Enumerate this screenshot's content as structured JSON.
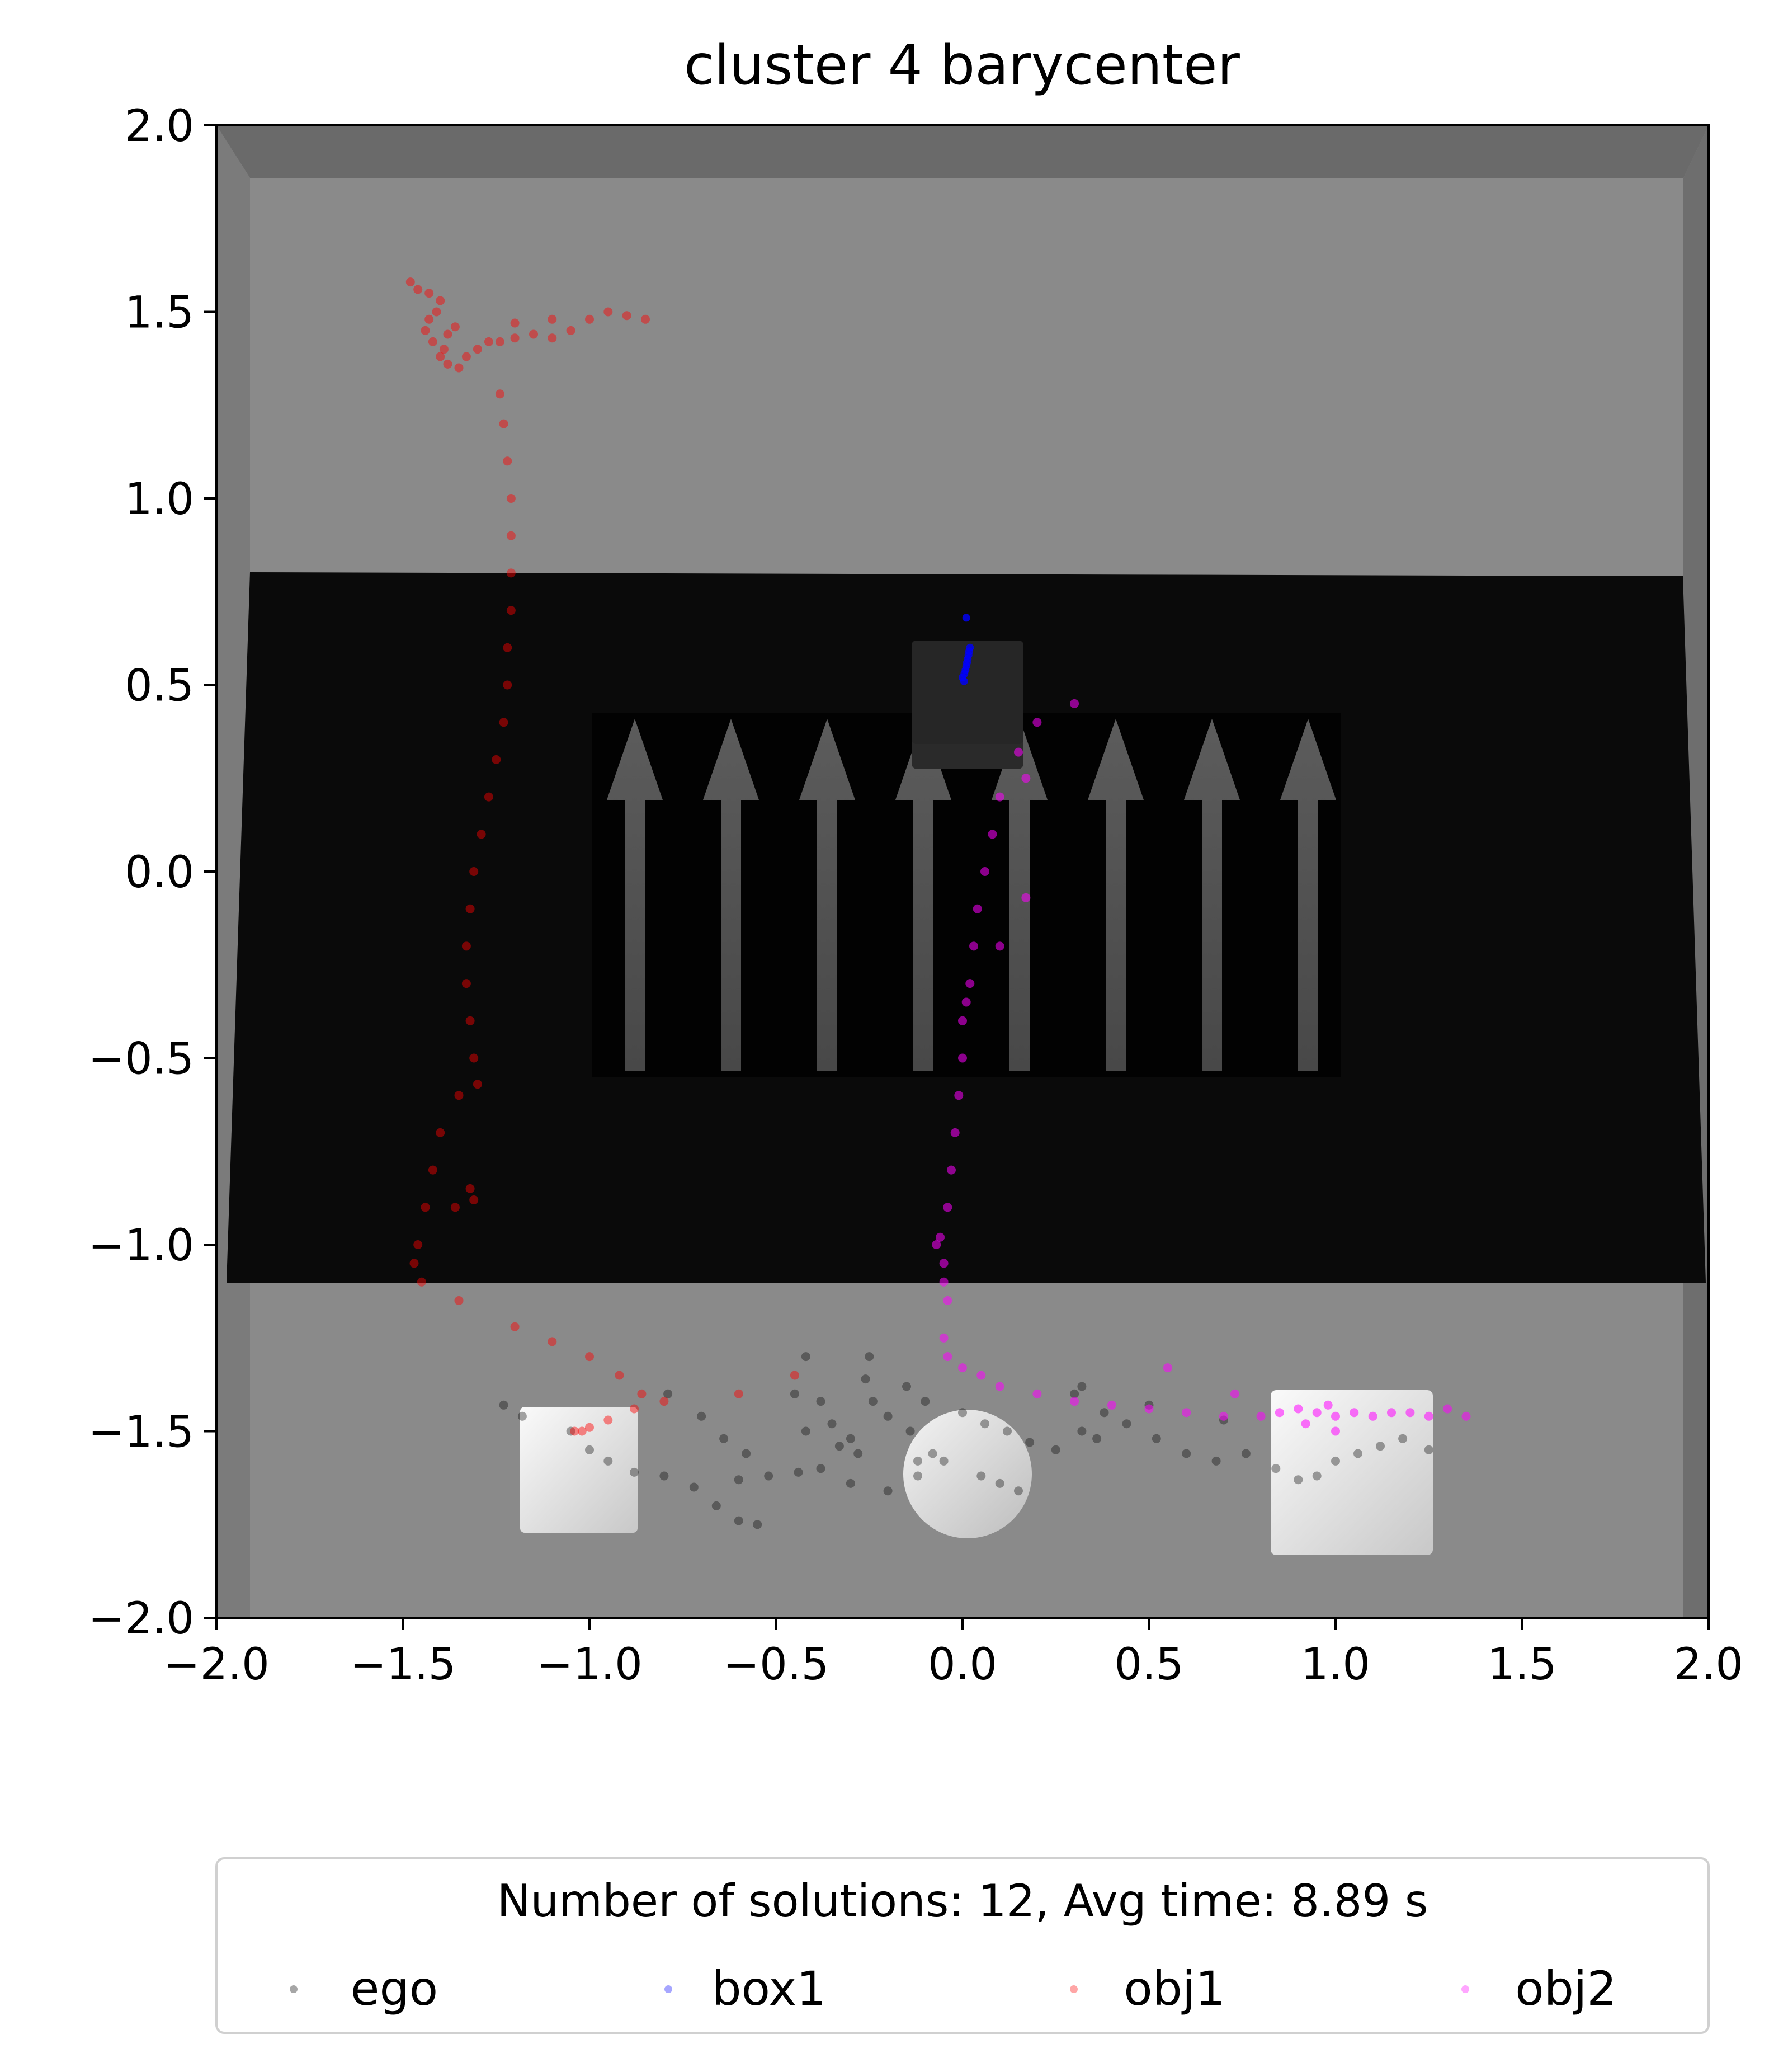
{
  "chart_data": {
    "type": "scatter",
    "title": "cluster 4 barycenter",
    "xlabel": "",
    "ylabel": "",
    "xlim": [
      -2.0,
      2.0
    ],
    "ylim": [
      -2.0,
      2.0
    ],
    "x_ticks": [
      "−2.0",
      "−1.5",
      "−1.0",
      "−0.5",
      "0.0",
      "0.5",
      "1.0",
      "1.5",
      "2.0"
    ],
    "y_ticks": [
      "2.0",
      "1.5",
      "1.0",
      "0.5",
      "0.0",
      "−0.5",
      "−1.0",
      "−1.5",
      "−2.0"
    ],
    "x_tick_values": [
      -2.0,
      -1.5,
      -1.0,
      -0.5,
      0.0,
      0.5,
      1.0,
      1.5,
      2.0
    ],
    "y_tick_values": [
      2.0,
      1.5,
      1.0,
      0.5,
      0.0,
      -0.5,
      -1.0,
      -1.5,
      -2.0
    ],
    "grid": false,
    "legend": {
      "placement": "below plot",
      "title": "Number of solutions: 12, Avg time: 8.89 s",
      "entries": [
        "ego",
        "box1",
        "obj1",
        "obj2"
      ]
    },
    "background_image": "top-down rendered scene: grey floor, dark carpet with arrows, two white cubes, white sphere, dark box",
    "series": [
      {
        "name": "ego",
        "color": "#000000",
        "points": [
          [
            -0.72,
            -1.65
          ],
          [
            -0.66,
            -1.7
          ],
          [
            -0.6,
            -1.74
          ],
          [
            -0.55,
            -1.75
          ],
          [
            -0.6,
            -1.63
          ],
          [
            -0.52,
            -1.62
          ],
          [
            -0.44,
            -1.61
          ],
          [
            -0.38,
            -1.6
          ],
          [
            -0.3,
            -1.64
          ],
          [
            -0.2,
            -1.66
          ],
          [
            -0.12,
            -1.62
          ],
          [
            -0.05,
            -1.58
          ],
          [
            -0.38,
            -1.42
          ],
          [
            -0.35,
            -1.48
          ],
          [
            -0.33,
            -1.54
          ],
          [
            -0.3,
            -1.52
          ],
          [
            -0.28,
            -1.56
          ],
          [
            -0.26,
            -1.36
          ],
          [
            -0.24,
            -1.42
          ],
          [
            -0.2,
            -1.46
          ],
          [
            -0.15,
            -1.38
          ],
          [
            -0.1,
            -1.42
          ],
          [
            -0.14,
            -1.5
          ],
          [
            -0.12,
            -1.58
          ],
          [
            0.0,
            -1.45
          ],
          [
            0.06,
            -1.48
          ],
          [
            0.12,
            -1.5
          ],
          [
            0.18,
            -1.53
          ],
          [
            0.05,
            -1.62
          ],
          [
            0.1,
            -1.64
          ],
          [
            0.15,
            -1.66
          ],
          [
            0.25,
            -1.55
          ],
          [
            0.32,
            -1.5
          ],
          [
            0.38,
            -1.45
          ],
          [
            0.36,
            -1.52
          ],
          [
            0.44,
            -1.48
          ],
          [
            0.52,
            -1.52
          ],
          [
            0.6,
            -1.56
          ],
          [
            0.68,
            -1.58
          ],
          [
            0.76,
            -1.56
          ],
          [
            0.84,
            -1.6
          ],
          [
            0.9,
            -1.63
          ],
          [
            0.95,
            -1.62
          ],
          [
            1.0,
            -1.58
          ],
          [
            1.06,
            -1.56
          ],
          [
            1.12,
            -1.54
          ],
          [
            1.18,
            -1.52
          ],
          [
            1.25,
            -1.55
          ],
          [
            -1.23,
            -1.43
          ],
          [
            -1.18,
            -1.46
          ],
          [
            -1.05,
            -1.5
          ],
          [
            -1.0,
            -1.55
          ],
          [
            -0.95,
            -1.58
          ],
          [
            -0.88,
            -1.61
          ],
          [
            -0.8,
            -1.62
          ],
          [
            -0.7,
            -1.46
          ],
          [
            -0.64,
            -1.52
          ],
          [
            -0.58,
            -1.56
          ],
          [
            -0.45,
            -1.4
          ],
          [
            -0.42,
            -1.5
          ],
          [
            -0.08,
            -1.56
          ],
          [
            0.3,
            -1.4
          ],
          [
            0.5,
            -1.43
          ],
          [
            0.7,
            -1.47
          ],
          [
            -0.79,
            -1.4
          ],
          [
            -0.42,
            -1.3
          ],
          [
            -0.25,
            -1.3
          ],
          [
            0.32,
            -1.38
          ]
        ]
      },
      {
        "name": "box1",
        "color": "#0000ff",
        "points": [
          [
            0.0,
            0.52
          ],
          [
            0.005,
            0.53
          ],
          [
            0.008,
            0.54
          ],
          [
            0.01,
            0.55
          ],
          [
            0.012,
            0.56
          ],
          [
            0.014,
            0.57
          ],
          [
            0.016,
            0.58
          ],
          [
            0.018,
            0.59
          ],
          [
            0.004,
            0.51
          ],
          [
            0.02,
            0.6
          ],
          [
            0.01,
            0.68
          ]
        ]
      },
      {
        "name": "obj1",
        "color": "#ff0000",
        "points": [
          [
            -1.48,
            1.58
          ],
          [
            -1.46,
            1.56
          ],
          [
            -1.43,
            1.55
          ],
          [
            -1.4,
            1.53
          ],
          [
            -1.41,
            1.5
          ],
          [
            -1.43,
            1.48
          ],
          [
            -1.44,
            1.45
          ],
          [
            -1.42,
            1.42
          ],
          [
            -1.39,
            1.4
          ],
          [
            -1.4,
            1.38
          ],
          [
            -1.38,
            1.36
          ],
          [
            -1.35,
            1.35
          ],
          [
            -1.33,
            1.38
          ],
          [
            -1.3,
            1.4
          ],
          [
            -1.27,
            1.42
          ],
          [
            -1.24,
            1.42
          ],
          [
            -1.2,
            1.43
          ],
          [
            -1.15,
            1.44
          ],
          [
            -1.1,
            1.43
          ],
          [
            -1.05,
            1.45
          ],
          [
            -1.0,
            1.48
          ],
          [
            -0.95,
            1.5
          ],
          [
            -0.9,
            1.49
          ],
          [
            -0.85,
            1.48
          ],
          [
            -1.38,
            1.44
          ],
          [
            -1.36,
            1.46
          ],
          [
            -1.2,
            1.47
          ],
          [
            -1.1,
            1.48
          ],
          [
            -1.24,
            1.28
          ],
          [
            -1.23,
            1.2
          ],
          [
            -1.22,
            1.1
          ],
          [
            -1.21,
            1.0
          ],
          [
            -1.21,
            0.9
          ],
          [
            -1.21,
            0.8
          ],
          [
            -1.21,
            0.7
          ],
          [
            -1.22,
            0.6
          ],
          [
            -1.22,
            0.5
          ],
          [
            -1.23,
            0.4
          ],
          [
            -1.25,
            0.3
          ],
          [
            -1.27,
            0.2
          ],
          [
            -1.29,
            0.1
          ],
          [
            -1.31,
            0.0
          ],
          [
            -1.32,
            -0.1
          ],
          [
            -1.33,
            -0.2
          ],
          [
            -1.33,
            -0.3
          ],
          [
            -1.32,
            -0.4
          ],
          [
            -1.31,
            -0.5
          ],
          [
            -1.3,
            -0.57
          ],
          [
            -1.35,
            -0.6
          ],
          [
            -1.4,
            -0.7
          ],
          [
            -1.42,
            -0.8
          ],
          [
            -1.44,
            -0.9
          ],
          [
            -1.46,
            -1.0
          ],
          [
            -1.47,
            -1.05
          ],
          [
            -1.45,
            -1.1
          ],
          [
            -1.35,
            -1.15
          ],
          [
            -1.2,
            -1.22
          ],
          [
            -1.1,
            -1.26
          ],
          [
            -1.0,
            -1.3
          ],
          [
            -0.92,
            -1.35
          ],
          [
            -0.86,
            -1.4
          ],
          [
            -0.8,
            -1.42
          ],
          [
            -0.88,
            -1.44
          ],
          [
            -0.95,
            -1.47
          ],
          [
            -1.0,
            -1.49
          ],
          [
            -1.02,
            -1.5
          ],
          [
            -1.04,
            -1.5
          ],
          [
            -0.6,
            -1.4
          ],
          [
            -0.45,
            -1.35
          ],
          [
            -1.32,
            -0.85
          ],
          [
            -1.31,
            -0.88
          ],
          [
            -1.36,
            -0.9
          ]
        ]
      },
      {
        "name": "obj2",
        "color": "#ff00ff",
        "points": [
          [
            0.1,
            0.2
          ],
          [
            0.08,
            0.1
          ],
          [
            0.06,
            0.0
          ],
          [
            0.04,
            -0.1
          ],
          [
            0.03,
            -0.2
          ],
          [
            0.02,
            -0.3
          ],
          [
            0.01,
            -0.35
          ],
          [
            0.0,
            -0.4
          ],
          [
            0.0,
            -0.5
          ],
          [
            -0.01,
            -0.6
          ],
          [
            -0.02,
            -0.7
          ],
          [
            -0.03,
            -0.8
          ],
          [
            -0.04,
            -0.9
          ],
          [
            -0.06,
            -0.98
          ],
          [
            -0.07,
            -1.0
          ],
          [
            -0.05,
            -1.05
          ],
          [
            -0.05,
            -1.1
          ],
          [
            -0.04,
            -1.15
          ],
          [
            -0.05,
            -1.25
          ],
          [
            -0.04,
            -1.3
          ],
          [
            0.0,
            -1.33
          ],
          [
            0.05,
            -1.35
          ],
          [
            0.1,
            -1.38
          ],
          [
            0.2,
            -1.4
          ],
          [
            0.3,
            -1.42
          ],
          [
            0.4,
            -1.43
          ],
          [
            0.5,
            -1.44
          ],
          [
            0.6,
            -1.45
          ],
          [
            0.7,
            -1.46
          ],
          [
            0.8,
            -1.46
          ],
          [
            0.85,
            -1.45
          ],
          [
            0.9,
            -1.44
          ],
          [
            0.95,
            -1.45
          ],
          [
            1.0,
            -1.46
          ],
          [
            1.05,
            -1.45
          ],
          [
            1.1,
            -1.46
          ],
          [
            1.15,
            -1.45
          ],
          [
            1.2,
            -1.45
          ],
          [
            1.25,
            -1.46
          ],
          [
            1.3,
            -1.44
          ],
          [
            1.35,
            -1.46
          ],
          [
            0.92,
            -1.48
          ],
          [
            1.0,
            -1.5
          ],
          [
            0.98,
            -1.43
          ],
          [
            0.73,
            -1.4
          ],
          [
            0.55,
            -1.33
          ],
          [
            0.2,
            0.4
          ],
          [
            0.3,
            0.45
          ],
          [
            0.17,
            0.25
          ],
          [
            0.15,
            0.32
          ],
          [
            0.17,
            -0.07
          ],
          [
            0.1,
            -0.2
          ]
        ]
      }
    ]
  }
}
